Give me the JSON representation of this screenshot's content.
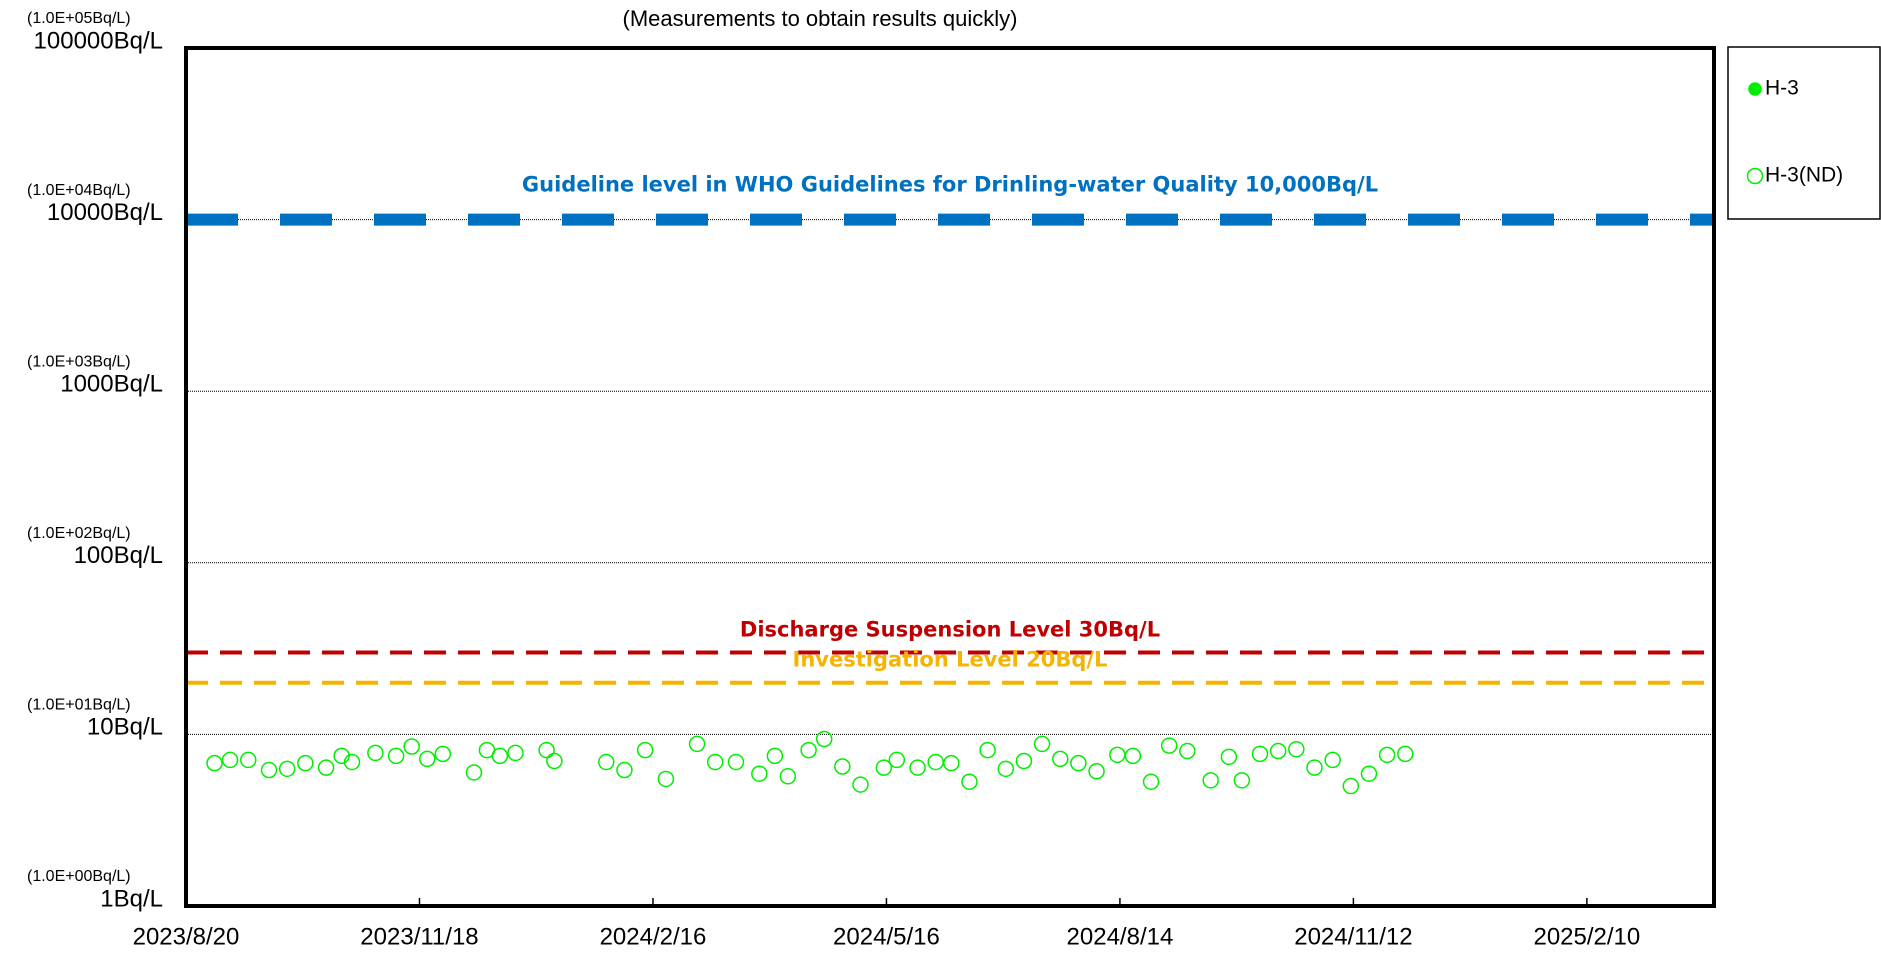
{
  "chart_data": {
    "type": "scatter",
    "subtitle": "(Measurements to obtain results quickly)",
    "log_scale": true,
    "grid": true,
    "legend_position": "right",
    "xlim": [
      "2023/8/20",
      "2025/3/31"
    ],
    "xticks": [
      "2023/8/20",
      "2023/11/18",
      "2024/2/16",
      "2024/5/16",
      "2024/8/14",
      "2024/11/12",
      "2025/2/10"
    ],
    "ylim": [
      1,
      100000
    ],
    "yticks": [
      {
        "value": 1,
        "label": "1Bq/L"
      },
      {
        "value": 10,
        "label": "10Bq/L"
      },
      {
        "value": 100,
        "label": "100Bq/L"
      },
      {
        "value": 1000,
        "label": "1000Bq/L"
      },
      {
        "value": 10000,
        "label": "10000Bq/L"
      },
      {
        "value": 100000,
        "label": "100000Bq/L"
      }
    ],
    "ytick_sci_labels": [
      "(1.0E+00Bq/L)",
      "(1.0E+01Bq/L)",
      "(1.0E+02Bq/L)",
      "(1.0E+03Bq/L)",
      "(1.0E+04Bq/L)",
      "(1.0E+05Bq/L)"
    ],
    "reference_lines": [
      {
        "label": "Guideline level in WHO Guidelines for Drinling-water Quality 10,000Bq/L",
        "value": 10000,
        "color": "#0070c0"
      },
      {
        "label": "Discharge Suspension Level 30Bq/L",
        "value": 30,
        "color": "#c00000"
      },
      {
        "label": "Investigation Level 20Bq/L",
        "value": 20,
        "color": "#f4b400"
      }
    ],
    "series": [
      {
        "name": "H-3",
        "color": "#00ee00",
        "filled": true,
        "x": [],
        "values": []
      },
      {
        "name": "H-3(ND)",
        "color": "#00ee00",
        "filled": false,
        "x": [
          "2023/8/31",
          "2023/9/6",
          "2023/9/13",
          "2023/9/21",
          "2023/9/28",
          "2023/10/5",
          "2023/10/13",
          "2023/10/19",
          "2023/10/23",
          "2023/11/1",
          "2023/11/9",
          "2023/11/15",
          "2023/11/21",
          "2023/11/27",
          "2023/12/9",
          "2023/12/14",
          "2023/12/19",
          "2023/12/25",
          "2024/1/6",
          "2024/1/9",
          "2024/1/29",
          "2024/2/5",
          "2024/2/13",
          "2024/2/21",
          "2024/3/4",
          "2024/3/11",
          "2024/3/19",
          "2024/3/28",
          "2024/4/3",
          "2024/4/8",
          "2024/4/16",
          "2024/4/22",
          "2024/4/29",
          "2024/5/6",
          "2024/5/15",
          "2024/5/20",
          "2024/5/28",
          "2024/6/4",
          "2024/6/10",
          "2024/6/17",
          "2024/6/24",
          "2024/7/1",
          "2024/7/8",
          "2024/7/15",
          "2024/7/22",
          "2024/7/29",
          "2024/8/5",
          "2024/8/13",
          "2024/8/19",
          "2024/8/26",
          "2024/9/2",
          "2024/9/9",
          "2024/9/18",
          "2024/9/25",
          "2024/9/30",
          "2024/10/7",
          "2024/10/14",
          "2024/10/21",
          "2024/10/28",
          "2024/11/4",
          "2024/11/11",
          "2024/11/18",
          "2024/11/25",
          "2024/12/2"
        ],
        "values": [
          6.8,
          7.1,
          7.1,
          6.2,
          6.3,
          6.8,
          6.4,
          7.5,
          6.9,
          7.8,
          7.5,
          8.5,
          7.2,
          7.7,
          6.0,
          8.1,
          7.5,
          7.8,
          8.1,
          7.0,
          6.9,
          6.2,
          8.1,
          5.5,
          8.8,
          6.9,
          6.9,
          5.9,
          7.5,
          5.7,
          8.1,
          9.4,
          6.5,
          5.1,
          6.4,
          7.1,
          6.4,
          6.9,
          6.8,
          5.3,
          8.1,
          6.3,
          7.0,
          8.8,
          7.2,
          6.8,
          6.1,
          7.6,
          7.5,
          5.3,
          8.6,
          8.0,
          5.4,
          7.4,
          5.4,
          7.7,
          8.0,
          8.2,
          6.4,
          7.1,
          5.0,
          5.9,
          7.6,
          7.7
        ]
      }
    ]
  }
}
